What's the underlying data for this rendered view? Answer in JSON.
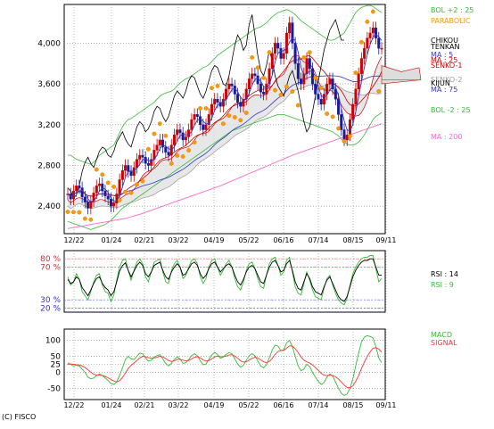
{
  "copyright": "(C) FISCO",
  "chart_data": [
    {
      "type": "line",
      "name": "price",
      "x_ticks": [
        "12/22",
        "01/24",
        "02/21",
        "03/22",
        "04/19",
        "05/22",
        "06/16",
        "07/14",
        "08/15",
        "09/11"
      ],
      "y_ticks": [
        2400,
        2800,
        3200,
        3600,
        4000
      ],
      "y_tick_labels": [
        "2,400",
        "2,800",
        "3,200",
        "3,600",
        "4,000"
      ],
      "ylim": [
        2130,
        4380
      ],
      "legend": [
        {
          "label": "BOL +2 : 25",
          "color": "#33bb33"
        },
        {
          "label": "PARABOLIC",
          "color": "#ff9900"
        },
        {
          "label": "CHIKOU",
          "color": "#000000"
        },
        {
          "label": "TENKAN",
          "color": "#000000"
        },
        {
          "label": "MA : 5",
          "color": "#3333cc"
        },
        {
          "label": "MA : 25",
          "color": "#cc0000"
        },
        {
          "label": "SENKO-1",
          "color": "#cc0000"
        },
        {
          "label": "SENKO-2",
          "color": "#999999"
        },
        {
          "label": "KIJUN",
          "color": "#000000"
        },
        {
          "label": "MA : 75",
          "color": "#3333cc"
        },
        {
          "label": "BOL -2 : 25",
          "color": "#33bb33"
        },
        {
          "label": "MA : 200",
          "color": "#ff66cc"
        }
      ],
      "series": {
        "close": [
          2520,
          2470,
          2550,
          2600,
          2580,
          2490,
          2440,
          2380,
          2450,
          2530,
          2600,
          2620,
          2550,
          2500,
          2470,
          2400,
          2430,
          2520,
          2660,
          2750,
          2800,
          2740,
          2700,
          2780,
          2860,
          2900,
          2880,
          2820,
          2800,
          2860,
          2950,
          3000,
          3050,
          2980,
          2930,
          2900,
          3000,
          3100,
          3150,
          3120,
          3050,
          3080,
          3150,
          3250,
          3300,
          3280,
          3200,
          3150,
          3200,
          3300,
          3400,
          3450,
          3420,
          3380,
          3450,
          3550,
          3600,
          3580,
          3500,
          3420,
          3380,
          3450,
          3550,
          3650,
          3700,
          3680,
          3600,
          3520,
          3500,
          3600,
          3750,
          3900,
          4000,
          3950,
          3850,
          3900,
          4100,
          4200,
          4000,
          3800,
          3650,
          3600,
          3700,
          3850,
          3750,
          3600,
          3500,
          3450,
          3400,
          3500,
          3600,
          3650,
          3550,
          3450,
          3300,
          3150,
          3050,
          3100,
          3250,
          3400,
          3550,
          3700,
          3850,
          3950,
          4050,
          4100,
          4150,
          4050,
          3950,
          3950
        ],
        "bol_upper": [
          2900,
          2900,
          2880,
          2860,
          2850,
          2840,
          2830,
          2820,
          2810,
          2830,
          2860,
          2900,
          2920,
          2940,
          2960,
          2980,
          3000,
          3060,
          3120,
          3180,
          3220,
          3250,
          3260,
          3280,
          3300,
          3320,
          3340,
          3360,
          3380,
          3400,
          3420,
          3450,
          3480,
          3500,
          3510,
          3520,
          3530,
          3550,
          3580,
          3610,
          3630,
          3650,
          3660,
          3680,
          3700,
          3720,
          3740,
          3760,
          3770,
          3790,
          3820,
          3850,
          3880,
          3900,
          3920,
          3940,
          3960,
          3980,
          4000,
          4020,
          4040,
          4060,
          4080,
          4100,
          4120,
          4140,
          4150,
          4160,
          4180,
          4200,
          4230,
          4260,
          4280,
          4300,
          4310,
          4320,
          4330,
          4320,
          4300,
          4280,
          4250,
          4220,
          4200,
          4180,
          4160,
          4140,
          4120,
          4100,
          4080,
          4060,
          4040,
          4030,
          4030,
          4040,
          4060,
          4080,
          4100,
          4150,
          4200,
          4250,
          4300,
          4330,
          4350,
          4360,
          4370,
          4370,
          4360,
          4340,
          4320,
          4300
        ],
        "bol_lower": [
          2250,
          2240,
          2230,
          2220,
          2210,
          2200,
          2190,
          2180,
          2170,
          2180,
          2190,
          2200,
          2210,
          2220,
          2240,
          2260,
          2290,
          2320,
          2350,
          2380,
          2400,
          2420,
          2440,
          2460,
          2480,
          2500,
          2520,
          2540,
          2560,
          2580,
          2600,
          2620,
          2640,
          2660,
          2680,
          2700,
          2720,
          2740,
          2760,
          2780,
          2800,
          2820,
          2840,
          2860,
          2880,
          2900,
          2920,
          2940,
          2960,
          2980,
          3000,
          3020,
          3040,
          3060,
          3080,
          3100,
          3120,
          3140,
          3150,
          3160,
          3170,
          3180,
          3190,
          3200,
          3210,
          3220,
          3230,
          3240,
          3250,
          3260,
          3270,
          3280,
          3290,
          3300,
          3300,
          3300,
          3290,
          3280,
          3270,
          3260,
          3250,
          3240,
          3230,
          3220,
          3210,
          3200,
          3190,
          3180,
          3170,
          3160,
          3150,
          3140,
          3130,
          3110,
          3090,
          3060,
          3030,
          3010,
          3000,
          3000,
          3010,
          3030,
          3060,
          3100,
          3150,
          3200,
          3250,
          3280,
          3300,
          3320
        ],
        "ma200": [
          2180,
          2185,
          2190,
          2195,
          2200,
          2205,
          2210,
          2215,
          2220,
          2225,
          2230,
          2235,
          2240,
          2245,
          2250,
          2255,
          2260,
          2265,
          2270,
          2275,
          2280,
          2288,
          2296,
          2304,
          2312,
          2320,
          2330,
          2340,
          2350,
          2360,
          2370,
          2380,
          2390,
          2400,
          2410,
          2420,
          2430,
          2440,
          2450,
          2460,
          2470,
          2480,
          2490,
          2500,
          2510,
          2520,
          2530,
          2540,
          2550,
          2560,
          2570,
          2580,
          2590,
          2600,
          2612,
          2624,
          2636,
          2648,
          2660,
          2672,
          2684,
          2696,
          2708,
          2720,
          2732,
          2744,
          2756,
          2768,
          2780,
          2792,
          2804,
          2816,
          2828,
          2840,
          2852,
          2864,
          2876,
          2888,
          2900,
          2910,
          2920,
          2930,
          2940,
          2950,
          2960,
          2970,
          2980,
          2990,
          3000,
          3010,
          3020,
          3030,
          3040,
          3050,
          3060,
          3070,
          3080,
          3090,
          3100,
          3110,
          3120,
          3130,
          3140,
          3150,
          3160,
          3170,
          3180,
          3190,
          3200,
          3210
        ]
      }
    },
    {
      "type": "line",
      "name": "rsi",
      "y_ticks": [
        20,
        30,
        70,
        80
      ],
      "y_tick_labels": [
        "20 %",
        "30 %",
        "70 %",
        "80 %"
      ],
      "ylim": [
        15,
        90
      ],
      "legend": [
        {
          "label": "RSI : 14",
          "color": "#000000"
        },
        {
          "label": "RSI : 9",
          "color": "#33bb33"
        }
      ],
      "series": {
        "rsi14": [
          55,
          50,
          52,
          58,
          55,
          45,
          40,
          35,
          42,
          50,
          56,
          58,
          50,
          45,
          42,
          35,
          40,
          52,
          65,
          72,
          75,
          66,
          58,
          65,
          72,
          76,
          72,
          62,
          58,
          64,
          72,
          74,
          76,
          66,
          58,
          55,
          64,
          70,
          74,
          70,
          60,
          62,
          68,
          74,
          76,
          72,
          62,
          56,
          60,
          68,
          74,
          76,
          70,
          64,
          68,
          72,
          74,
          70,
          60,
          52,
          48,
          55,
          64,
          70,
          72,
          68,
          60,
          52,
          50,
          60,
          70,
          76,
          78,
          72,
          64,
          66,
          74,
          78,
          66,
          52,
          44,
          42,
          52,
          62,
          56,
          46,
          40,
          38,
          36,
          46,
          54,
          58,
          50,
          42,
          34,
          30,
          28,
          34,
          46,
          58,
          66,
          72,
          76,
          78,
          78,
          80,
          80,
          70,
          60,
          60
        ],
        "rsi9": [
          58,
          48,
          52,
          62,
          55,
          40,
          35,
          30,
          40,
          52,
          60,
          62,
          48,
          40,
          38,
          28,
          36,
          54,
          70,
          78,
          80,
          66,
          54,
          66,
          76,
          80,
          74,
          58,
          52,
          64,
          76,
          78,
          80,
          64,
          52,
          50,
          66,
          74,
          78,
          70,
          56,
          60,
          70,
          78,
          80,
          74,
          58,
          50,
          56,
          70,
          78,
          80,
          70,
          60,
          66,
          74,
          78,
          70,
          56,
          46,
          42,
          52,
          66,
          74,
          76,
          68,
          56,
          46,
          44,
          60,
          74,
          80,
          82,
          72,
          60,
          64,
          78,
          82,
          64,
          46,
          38,
          36,
          50,
          64,
          54,
          42,
          34,
          32,
          30,
          44,
          56,
          60,
          48,
          38,
          30,
          26,
          24,
          32,
          48,
          62,
          70,
          76,
          80,
          82,
          82,
          84,
          84,
          68,
          52,
          56
        ]
      }
    },
    {
      "type": "line",
      "name": "macd",
      "y_ticks": [
        -50,
        0,
        25,
        50,
        100
      ],
      "y_tick_labels": [
        "-50",
        "0",
        "25",
        "50",
        "100"
      ],
      "ylim": [
        -85,
        135
      ],
      "legend": [
        {
          "label": "MACD",
          "color": "#33bb33"
        },
        {
          "label": "SIGNAL",
          "color": "#ff3333"
        }
      ],
      "series": {
        "macd": [
          30,
          25,
          20,
          22,
          20,
          10,
          0,
          -15,
          -20,
          -18,
          -10,
          -5,
          -10,
          -18,
          -25,
          -35,
          -38,
          -30,
          -10,
          15,
          40,
          50,
          42,
          40,
          50,
          60,
          58,
          45,
          35,
          38,
          48,
          52,
          55,
          42,
          28,
          20,
          28,
          40,
          48,
          42,
          28,
          30,
          40,
          52,
          58,
          52,
          36,
          24,
          26,
          40,
          54,
          62,
          56,
          44,
          48,
          56,
          62,
          58,
          42,
          26,
          16,
          22,
          38,
          52,
          58,
          52,
          36,
          20,
          14,
          24,
          46,
          70,
          85,
          82,
          68,
          70,
          92,
          100,
          80,
          50,
          20,
          5,
          10,
          25,
          18,
          0,
          -15,
          -28,
          -38,
          -32,
          -15,
          -5,
          -12,
          -30,
          -50,
          -65,
          -72,
          -68,
          -50,
          -20,
          20,
          60,
          95,
          110,
          115,
          112,
          108,
          80,
          45,
          30
        ],
        "signal": [
          25,
          26,
          25,
          24,
          23,
          20,
          15,
          8,
          0,
          -6,
          -9,
          -9,
          -10,
          -13,
          -17,
          -22,
          -27,
          -30,
          -26,
          -16,
          -2,
          12,
          22,
          29,
          37,
          45,
          50,
          49,
          46,
          44,
          45,
          47,
          50,
          48,
          43,
          37,
          34,
          36,
          40,
          41,
          38,
          36,
          37,
          42,
          47,
          49,
          45,
          39,
          35,
          37,
          42,
          48,
          51,
          49,
          49,
          51,
          54,
          55,
          51,
          44,
          36,
          32,
          33,
          38,
          44,
          47,
          45,
          39,
          33,
          30,
          34,
          44,
          56,
          65,
          68,
          69,
          75,
          83,
          82,
          74,
          62,
          48,
          38,
          33,
          29,
          23,
          15,
          6,
          -3,
          -9,
          -10,
          -9,
          -10,
          -14,
          -21,
          -30,
          -40,
          -47,
          -48,
          -42,
          -28,
          -10,
          12,
          32,
          50,
          64,
          75,
          77,
          73,
          63
        ]
      }
    }
  ]
}
